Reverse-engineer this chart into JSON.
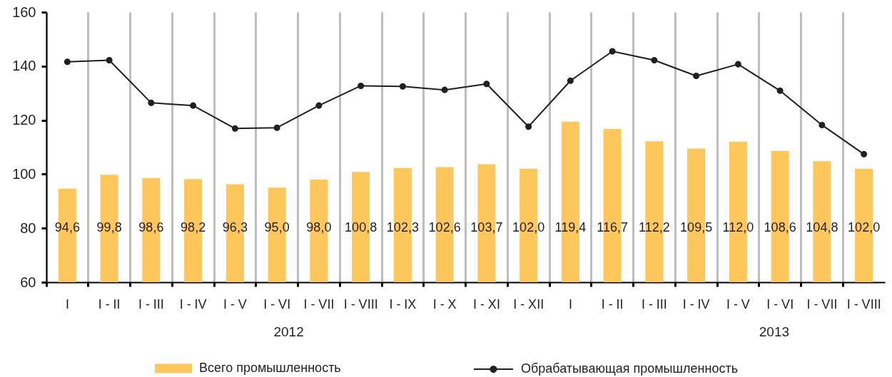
{
  "chart_data": {
    "type": "bar",
    "categories": [
      "I",
      "I - II",
      "I - III",
      "I - IV",
      "I - V",
      "I - VI",
      "I - VII",
      "I - VIII",
      "I - IX",
      "I - X",
      "I - XI",
      "I - XII",
      "I",
      "I - II",
      "I - III",
      "I - IV",
      "I - V",
      "I - VI",
      "I - VII",
      "I - VIII"
    ],
    "series": [
      {
        "name": "Всего промышленность",
        "color": "#fdc75b",
        "values": [
          94.6,
          99.8,
          98.6,
          98.2,
          96.3,
          95.0,
          98.0,
          100.8,
          102.3,
          102.6,
          103.7,
          102.0,
          119.4,
          116.7,
          112.2,
          109.5,
          112.0,
          108.6,
          104.8,
          102.0
        ],
        "value_labels": [
          "94,6",
          "99,8",
          "98,6",
          "98,2",
          "96,3",
          "95,0",
          "98,0",
          "100,8",
          "102,3",
          "102,6",
          "103,7",
          "102,0",
          "119,4",
          "116,7",
          "112,2",
          "109,5",
          "112,0",
          "108,6",
          "104,8",
          "102,0"
        ]
      },
      {
        "name": "Обрабатывающая промышленность",
        "type": "line",
        "color": "#231f20",
        "values": [
          141.6,
          142.2,
          126.4,
          125.4,
          116.9,
          117.2,
          125.4,
          132.7,
          132.5,
          131.2,
          133.4,
          117.6,
          134.6,
          145.5,
          142.2,
          136.4,
          140.7,
          130.9,
          118.2,
          107.4
        ]
      }
    ],
    "ylim": [
      60,
      160
    ],
    "yticks": [
      60,
      80,
      100,
      120,
      140,
      160
    ],
    "grid": "x",
    "legend": "bottom",
    "marker": "circle",
    "annotations": [
      "2012",
      "2013"
    ]
  }
}
